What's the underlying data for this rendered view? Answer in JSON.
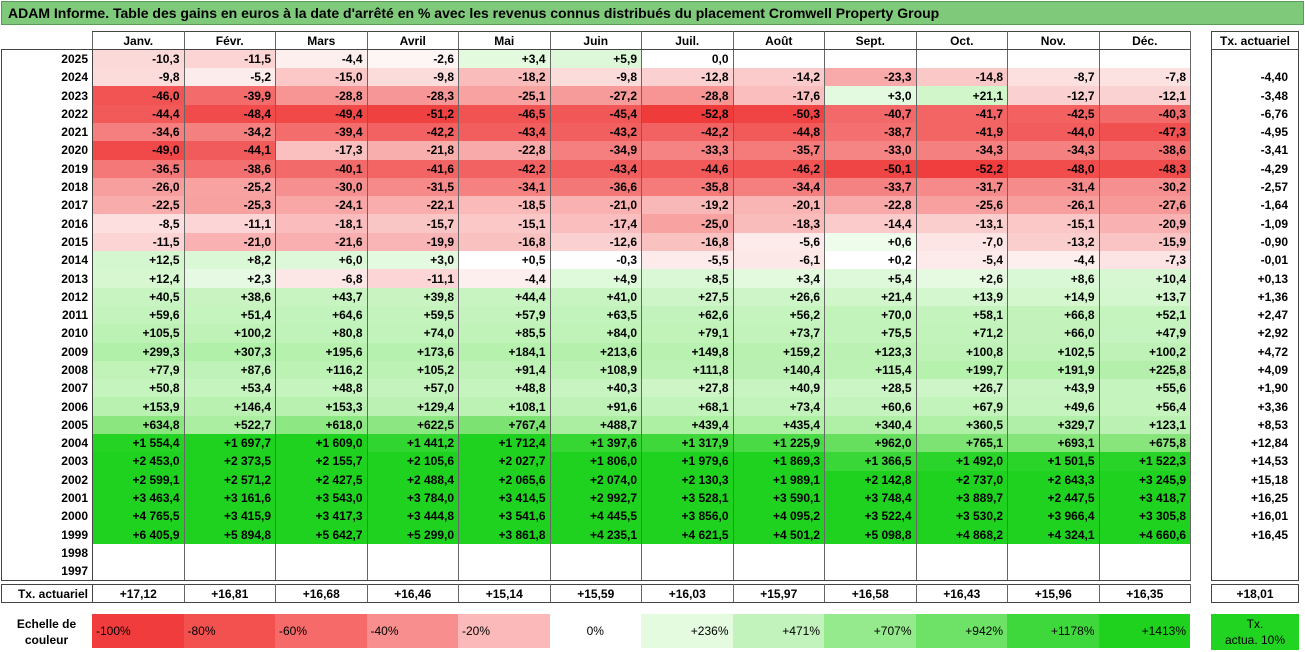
{
  "title": "ADAM Informe. Table des gains en euros à la date d'arrêté en % avec les revenus connus distribués du placement Cromwell Property Group",
  "months": [
    "Janv.",
    "Févr.",
    "Mars",
    "Avril",
    "Mai",
    "Juin",
    "Juil.",
    "Août",
    "Sept.",
    "Oct.",
    "Nov.",
    "Déc."
  ],
  "side_header": "Tx. actuariel",
  "rows": [
    {
      "year": "2025",
      "cells": [
        "-10,3",
        "-11,5",
        "-4,4",
        "-2,6",
        "+3,4",
        "+5,9",
        "0,0",
        "",
        "",
        "",
        "",
        ""
      ],
      "rate": ""
    },
    {
      "year": "2024",
      "cells": [
        "-9,8",
        "-5,2",
        "-15,0",
        "-9,8",
        "-18,2",
        "-9,8",
        "-12,8",
        "-14,2",
        "-23,3",
        "-14,8",
        "-8,7",
        "-7,8"
      ],
      "rate": "-4,40"
    },
    {
      "year": "2023",
      "cells": [
        "-46,0",
        "-39,9",
        "-28,8",
        "-28,3",
        "-25,1",
        "-27,2",
        "-28,8",
        "-17,6",
        "+3,0",
        "+21,1",
        "-12,7",
        "-12,1"
      ],
      "rate": "-3,48"
    },
    {
      "year": "2022",
      "cells": [
        "-44,4",
        "-48,4",
        "-49,4",
        "-51,2",
        "-46,5",
        "-45,4",
        "-52,8",
        "-50,3",
        "-40,7",
        "-41,7",
        "-42,5",
        "-40,3"
      ],
      "rate": "-6,76"
    },
    {
      "year": "2021",
      "cells": [
        "-34,6",
        "-34,2",
        "-39,4",
        "-42,2",
        "-43,4",
        "-43,2",
        "-42,2",
        "-44,8",
        "-38,7",
        "-41,9",
        "-44,0",
        "-47,3"
      ],
      "rate": "-4,95"
    },
    {
      "year": "2020",
      "cells": [
        "-49,0",
        "-44,1",
        "-17,3",
        "-21,8",
        "-22,8",
        "-34,9",
        "-33,3",
        "-35,7",
        "-33,0",
        "-34,3",
        "-34,3",
        "-38,6"
      ],
      "rate": "-3,41"
    },
    {
      "year": "2019",
      "cells": [
        "-36,5",
        "-38,6",
        "-40,1",
        "-41,6",
        "-42,2",
        "-43,4",
        "-44,6",
        "-46,2",
        "-50,1",
        "-52,2",
        "-48,0",
        "-48,3"
      ],
      "rate": "-4,29"
    },
    {
      "year": "2018",
      "cells": [
        "-26,0",
        "-25,2",
        "-30,0",
        "-31,5",
        "-34,1",
        "-36,6",
        "-35,8",
        "-34,4",
        "-33,7",
        "-31,7",
        "-31,4",
        "-30,2"
      ],
      "rate": "-2,57"
    },
    {
      "year": "2017",
      "cells": [
        "-22,5",
        "-25,3",
        "-24,1",
        "-22,1",
        "-18,5",
        "-21,0",
        "-19,2",
        "-20,1",
        "-22,8",
        "-25,6",
        "-26,1",
        "-27,6"
      ],
      "rate": "-1,64"
    },
    {
      "year": "2016",
      "cells": [
        "-8,5",
        "-11,1",
        "-18,1",
        "-15,7",
        "-15,1",
        "-17,4",
        "-25,0",
        "-18,3",
        "-14,4",
        "-13,1",
        "-15,1",
        "-20,9"
      ],
      "rate": "-1,09"
    },
    {
      "year": "2015",
      "cells": [
        "-11,5",
        "-21,0",
        "-21,6",
        "-19,9",
        "-16,8",
        "-12,6",
        "-16,8",
        "-5,6",
        "+0,6",
        "-7,0",
        "-13,2",
        "-15,9"
      ],
      "rate": "-0,90"
    },
    {
      "year": "2014",
      "cells": [
        "+12,5",
        "+8,2",
        "+6,0",
        "+3,0",
        "+0,5",
        "-0,3",
        "-5,5",
        "-6,1",
        "+0,2",
        "-5,4",
        "-4,4",
        "-7,3"
      ],
      "rate": "-0,01"
    },
    {
      "year": "2013",
      "cells": [
        "+12,4",
        "+2,3",
        "-6,8",
        "-11,1",
        "-4,4",
        "+4,9",
        "+8,5",
        "+3,4",
        "+5,4",
        "+2,6",
        "+8,6",
        "+10,4"
      ],
      "rate": "+0,13"
    },
    {
      "year": "2012",
      "cells": [
        "+40,5",
        "+38,6",
        "+43,7",
        "+39,8",
        "+44,4",
        "+41,0",
        "+27,5",
        "+26,6",
        "+21,4",
        "+13,9",
        "+14,9",
        "+13,7"
      ],
      "rate": "+1,36"
    },
    {
      "year": "2011",
      "cells": [
        "+59,6",
        "+51,4",
        "+64,6",
        "+59,5",
        "+57,9",
        "+63,5",
        "+62,6",
        "+56,2",
        "+70,0",
        "+58,1",
        "+66,8",
        "+52,1"
      ],
      "rate": "+2,47"
    },
    {
      "year": "2010",
      "cells": [
        "+105,5",
        "+100,2",
        "+80,8",
        "+74,0",
        "+85,5",
        "+84,0",
        "+79,1",
        "+73,7",
        "+75,5",
        "+71,2",
        "+66,0",
        "+47,9"
      ],
      "rate": "+2,92"
    },
    {
      "year": "2009",
      "cells": [
        "+299,3",
        "+307,3",
        "+195,6",
        "+173,6",
        "+184,1",
        "+213,6",
        "+149,8",
        "+159,2",
        "+123,3",
        "+100,8",
        "+102,5",
        "+100,2"
      ],
      "rate": "+4,72"
    },
    {
      "year": "2008",
      "cells": [
        "+77,9",
        "+87,6",
        "+116,2",
        "+105,2",
        "+91,4",
        "+108,9",
        "+111,8",
        "+140,4",
        "+115,4",
        "+199,7",
        "+191,9",
        "+225,8"
      ],
      "rate": "+4,09"
    },
    {
      "year": "2007",
      "cells": [
        "+50,8",
        "+53,4",
        "+48,8",
        "+57,0",
        "+48,8",
        "+40,3",
        "+27,8",
        "+40,9",
        "+28,5",
        "+26,7",
        "+43,9",
        "+55,6"
      ],
      "rate": "+1,90"
    },
    {
      "year": "2006",
      "cells": [
        "+153,9",
        "+146,4",
        "+153,3",
        "+129,4",
        "+108,1",
        "+91,6",
        "+68,1",
        "+73,4",
        "+60,6",
        "+67,9",
        "+49,6",
        "+56,4"
      ],
      "rate": "+3,36"
    },
    {
      "year": "2005",
      "cells": [
        "+634,8",
        "+522,7",
        "+618,0",
        "+622,5",
        "+767,4",
        "+488,7",
        "+439,4",
        "+435,4",
        "+340,4",
        "+360,5",
        "+329,7",
        "+123,1"
      ],
      "rate": "+8,53"
    },
    {
      "year": "2004",
      "cells": [
        "+1 554,4",
        "+1 697,7",
        "+1 609,0",
        "+1 441,2",
        "+1 712,4",
        "+1 397,6",
        "+1 317,9",
        "+1 225,9",
        "+962,0",
        "+765,1",
        "+693,1",
        "+675,8"
      ],
      "rate": "+12,84"
    },
    {
      "year": "2003",
      "cells": [
        "+2 453,0",
        "+2 373,5",
        "+2 155,7",
        "+2 105,6",
        "+2 027,7",
        "+1 806,0",
        "+1 979,6",
        "+1 869,3",
        "+1 366,5",
        "+1 492,0",
        "+1 501,5",
        "+1 522,3"
      ],
      "rate": "+14,53"
    },
    {
      "year": "2002",
      "cells": [
        "+2 599,1",
        "+2 571,2",
        "+2 427,5",
        "+2 488,4",
        "+2 065,6",
        "+2 074,0",
        "+2 130,3",
        "+1 989,1",
        "+2 142,8",
        "+2 737,0",
        "+2 643,3",
        "+3 245,9"
      ],
      "rate": "+15,18"
    },
    {
      "year": "2001",
      "cells": [
        "+3 463,4",
        "+3 161,6",
        "+3 543,0",
        "+3 784,0",
        "+3 414,5",
        "+2 992,7",
        "+3 528,1",
        "+3 590,1",
        "+3 748,4",
        "+3 889,7",
        "+2 447,5",
        "+3 418,7"
      ],
      "rate": "+16,25"
    },
    {
      "year": "2000",
      "cells": [
        "+4 765,5",
        "+3 415,9",
        "+3 417,3",
        "+3 444,8",
        "+3 541,6",
        "+4 445,5",
        "+3 856,0",
        "+4 095,2",
        "+3 522,4",
        "+3 530,2",
        "+3 966,4",
        "+3 305,8"
      ],
      "rate": "+16,01"
    },
    {
      "year": "1999",
      "cells": [
        "+6 405,9",
        "+5 894,8",
        "+5 642,7",
        "+5 299,0",
        "+3 861,8",
        "+4 235,1",
        "+4 621,5",
        "+4 501,2",
        "+5 098,8",
        "+4 868,2",
        "+4 324,1",
        "+4 660,6"
      ],
      "rate": "+16,45"
    },
    {
      "year": "1998",
      "cells": [
        "",
        "",
        "",
        "",
        "",
        "",
        "",
        "",
        "",
        "",
        "",
        ""
      ],
      "rate": ""
    },
    {
      "year": "1997",
      "cells": [
        "",
        "",
        "",
        "",
        "",
        "",
        "",
        "",
        "",
        "",
        "",
        ""
      ],
      "rate": ""
    }
  ],
  "footer": {
    "label": "Tx. actuariel",
    "cells": [
      "+17,12",
      "+16,81",
      "+16,68",
      "+16,46",
      "+15,14",
      "+15,59",
      "+16,03",
      "+15,97",
      "+16,58",
      "+16,43",
      "+15,96",
      "+16,35"
    ],
    "rate": "+18,01"
  },
  "scale": {
    "label_line1": "Echelle de",
    "label_line2": "couleur",
    "steps": [
      {
        "text": "-100%",
        "color": "#f03c3c",
        "align": "l"
      },
      {
        "text": "-80%",
        "color": "#f35050",
        "align": "l"
      },
      {
        "text": "-60%",
        "color": "#f66a6a",
        "align": "l"
      },
      {
        "text": "-40%",
        "color": "#f88e8e",
        "align": "l"
      },
      {
        "text": "-20%",
        "color": "#fbb9b9",
        "align": "l"
      },
      {
        "text": "0%",
        "color": "#ffffff",
        "align": "c"
      },
      {
        "text": "+236%",
        "color": "#e4fbe0",
        "align": "r"
      },
      {
        "text": "+471%",
        "color": "#c3f3bd",
        "align": "r"
      },
      {
        "text": "+707%",
        "color": "#94ea8c",
        "align": "r"
      },
      {
        "text": "+942%",
        "color": "#6ee266",
        "align": "r"
      },
      {
        "text": "+1178%",
        "color": "#3fd83c",
        "align": "r"
      },
      {
        "text": "+1413%",
        "color": "#1ed21e",
        "align": "r"
      }
    ],
    "rate_line1": "Tx.",
    "rate_line2": "actua. 10%",
    "rate_color": "#22d422"
  }
}
